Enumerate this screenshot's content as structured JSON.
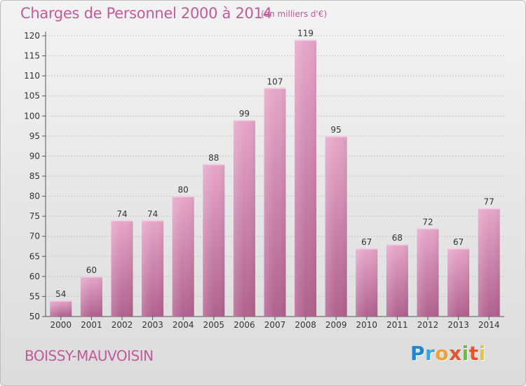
{
  "header": {
    "title": "Charges de Personnel 2000 à 2014",
    "unit": "(en milliers d'€)"
  },
  "footer": {
    "commune": "BOISSY-MAUVOISIN",
    "brand": [
      "P",
      "r",
      "o",
      "x",
      "i",
      "t",
      "i"
    ]
  },
  "colors": {
    "text_accent": "#c45a9a",
    "bar_top": "#e6a6c9",
    "bar_bottom": "#b0618e"
  },
  "chart_data": {
    "type": "bar",
    "categories": [
      "2000",
      "2001",
      "2002",
      "2003",
      "2004",
      "2005",
      "2006",
      "2007",
      "2008",
      "2009",
      "2010",
      "2011",
      "2012",
      "2013",
      "2014"
    ],
    "values": [
      54,
      60,
      74,
      74,
      80,
      88,
      99,
      107,
      119,
      95,
      67,
      68,
      72,
      67,
      77
    ],
    "ylim": [
      50,
      120
    ],
    "yticks": [
      50,
      55,
      60,
      65,
      70,
      75,
      80,
      85,
      90,
      95,
      100,
      105,
      110,
      115,
      120
    ],
    "grid": true,
    "title": "Charges de Personnel 2000 à 2014",
    "xlabel": "",
    "ylabel": ""
  }
}
